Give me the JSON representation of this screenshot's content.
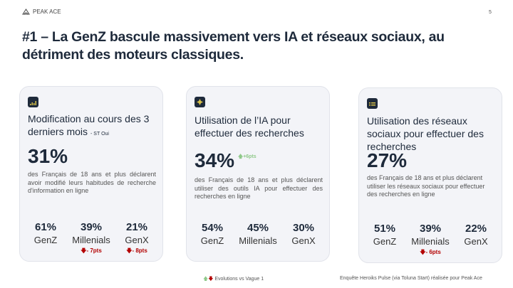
{
  "header": {
    "brand": "PEAK ACE",
    "page_number": "5",
    "title": "#1 – La GenZ bascule massivement vers IA et réseaux sociaux, au détriment des moteurs classiques."
  },
  "cards": [
    {
      "title": "Modification au cours des 3 derniers mois",
      "subtitle": "- ST Oui",
      "value": "31%",
      "description": "des Français de 18 ans et plus déclarent avoir modifié leurs habitudes de recherche d'information en ligne",
      "stats": [
        {
          "value": "61%",
          "label": "GenZ"
        },
        {
          "value": "39%",
          "label": "Millenials",
          "evolution": "- 7pts"
        },
        {
          "value": "21%",
          "label": "GenX",
          "evolution": "- 8pts"
        }
      ]
    },
    {
      "title": "Utilisation de l’IA pour effectuer des recherches",
      "value": "34%",
      "evolution": "+6pts",
      "description": "des Français de 18 ans et plus déclarent utiliser des outils IA pour effectuer des recherches en ligne",
      "stats": [
        {
          "value": "54%",
          "label": "GenZ"
        },
        {
          "value": "45%",
          "label": "Millenials"
        },
        {
          "value": "30%",
          "label": "GenX"
        }
      ]
    },
    {
      "title": "Utilisation des réseaux sociaux pour effectuer des recherches",
      "value": "27%",
      "description": "des Français de 18 ans et plus déclarent utiliser les réseaux sociaux pour effectuer des recherches en ligne",
      "stats": [
        {
          "value": "51%",
          "label": "GenZ"
        },
        {
          "value": "39%",
          "label": "Millenials",
          "evolution": "- 6pts"
        },
        {
          "value": "22%",
          "label": "GenX"
        }
      ]
    }
  ],
  "footer": {
    "legend": "Evolutions vs Vague 1",
    "source": "Enquête Heroiks Pulse (via Toluna Start) réalisée pour Peak Ace"
  },
  "colors": {
    "up": "#8fc98a",
    "down": "#b30000",
    "text": "#1e2a3b"
  }
}
